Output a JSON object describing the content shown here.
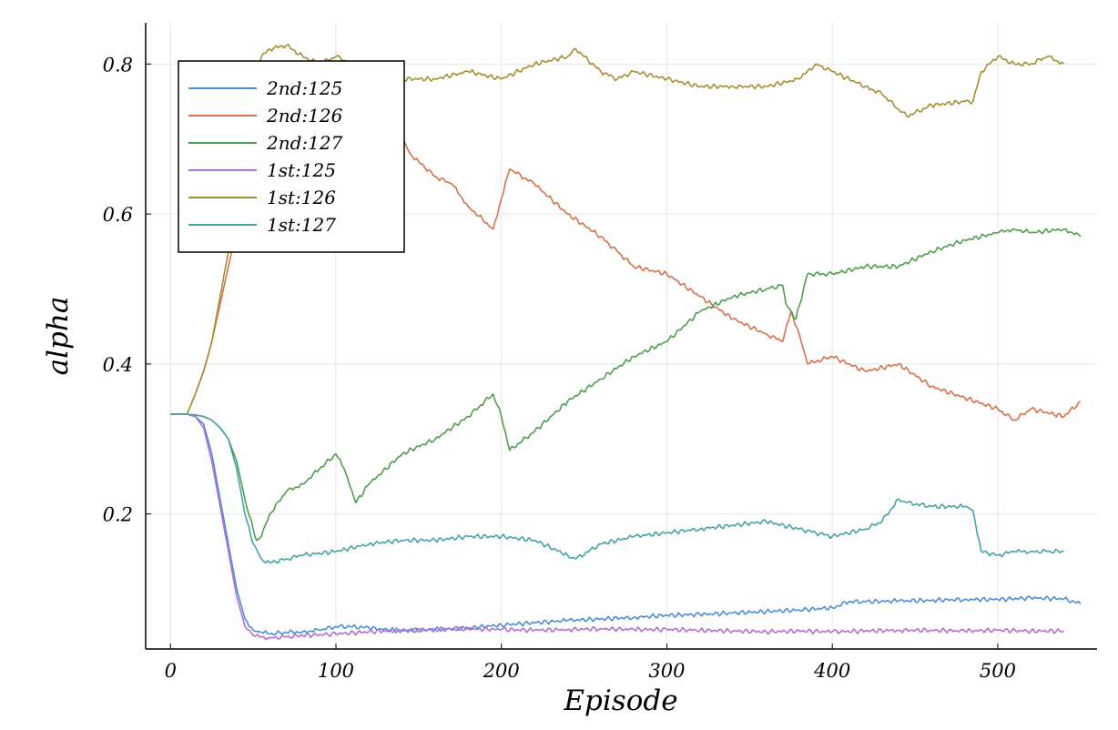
{
  "chart_data": {
    "type": "line",
    "title": "",
    "xlabel": "Episode",
    "ylabel": "alpha",
    "xlim": [
      -15,
      560
    ],
    "ylim": [
      0.02,
      0.855
    ],
    "xticks": [
      0,
      100,
      200,
      300,
      400,
      500
    ],
    "xtick_labels": [
      "0",
      "100",
      "200",
      "300",
      "400",
      "500"
    ],
    "yticks": [
      0.2,
      0.4,
      0.6,
      0.8
    ],
    "ytick_labels": [
      "0.2",
      "0.4",
      "0.6",
      "0.8"
    ],
    "grid": true,
    "legend_position": "top-left",
    "series": [
      {
        "name": "2nd:125",
        "color": "#4a8fd8",
        "x": [
          0,
          10,
          15,
          20,
          25,
          30,
          35,
          40,
          45,
          50,
          55,
          60,
          70,
          80,
          90,
          100,
          110,
          120,
          140,
          160,
          180,
          200,
          220,
          240,
          260,
          280,
          300,
          320,
          340,
          360,
          380,
          400,
          410,
          420,
          440,
          460,
          480,
          500,
          520,
          540,
          550
        ],
        "y": [
          0.333,
          0.333,
          0.33,
          0.32,
          0.28,
          0.22,
          0.16,
          0.1,
          0.06,
          0.045,
          0.042,
          0.04,
          0.042,
          0.043,
          0.045,
          0.05,
          0.05,
          0.048,
          0.044,
          0.046,
          0.048,
          0.052,
          0.055,
          0.058,
          0.06,
          0.062,
          0.065,
          0.066,
          0.068,
          0.07,
          0.072,
          0.075,
          0.083,
          0.083,
          0.084,
          0.085,
          0.086,
          0.086,
          0.088,
          0.087,
          0.08
        ]
      },
      {
        "name": "2nd:126",
        "color": "#d6714b",
        "x": [
          0,
          10,
          15,
          20,
          25,
          30,
          35,
          40,
          45,
          50,
          55,
          60,
          70,
          80,
          100,
          120,
          130,
          140,
          145,
          150,
          160,
          170,
          180,
          195,
          200,
          205,
          220,
          240,
          260,
          270,
          280,
          300,
          320,
          340,
          360,
          370,
          375,
          380,
          385,
          400,
          420,
          440,
          460,
          480,
          500,
          510,
          520,
          540,
          550
        ],
        "y": [
          0.333,
          0.333,
          0.36,
          0.39,
          0.43,
          0.48,
          0.53,
          0.58,
          0.64,
          0.72,
          0.78,
          0.8,
          0.79,
          0.77,
          0.76,
          0.74,
          0.72,
          0.7,
          0.68,
          0.67,
          0.65,
          0.64,
          0.61,
          0.58,
          0.62,
          0.66,
          0.64,
          0.6,
          0.57,
          0.55,
          0.53,
          0.52,
          0.49,
          0.46,
          0.44,
          0.43,
          0.47,
          0.44,
          0.4,
          0.41,
          0.39,
          0.4,
          0.37,
          0.355,
          0.34,
          0.325,
          0.34,
          0.33,
          0.35
        ]
      },
      {
        "name": "2nd:127",
        "color": "#4e9e4e",
        "x": [
          0,
          10,
          15,
          20,
          25,
          30,
          35,
          40,
          45,
          50,
          52,
          55,
          60,
          70,
          80,
          90,
          100,
          105,
          112,
          120,
          140,
          160,
          180,
          195,
          200,
          205,
          220,
          240,
          260,
          280,
          300,
          320,
          340,
          360,
          370,
          372,
          378,
          385,
          400,
          420,
          440,
          460,
          480,
          500,
          510,
          520,
          540,
          550
        ],
        "y": [
          0.333,
          0.333,
          0.332,
          0.33,
          0.325,
          0.315,
          0.3,
          0.27,
          0.22,
          0.18,
          0.165,
          0.17,
          0.2,
          0.23,
          0.24,
          0.26,
          0.28,
          0.26,
          0.215,
          0.24,
          0.28,
          0.3,
          0.33,
          0.36,
          0.33,
          0.285,
          0.31,
          0.35,
          0.38,
          0.41,
          0.43,
          0.47,
          0.49,
          0.5,
          0.505,
          0.48,
          0.46,
          0.52,
          0.52,
          0.53,
          0.53,
          0.55,
          0.565,
          0.575,
          0.58,
          0.575,
          0.58,
          0.57
        ]
      },
      {
        "name": "1st:125",
        "color": "#b26fd1",
        "x": [
          0,
          10,
          15,
          20,
          25,
          30,
          35,
          40,
          45,
          50,
          55,
          60,
          70,
          80,
          100,
          120,
          140,
          160,
          180,
          200,
          220,
          240,
          260,
          280,
          300,
          320,
          340,
          360,
          380,
          400,
          420,
          440,
          460,
          480,
          500,
          520,
          540
        ],
        "y": [
          0.333,
          0.333,
          0.33,
          0.315,
          0.27,
          0.21,
          0.15,
          0.09,
          0.05,
          0.038,
          0.036,
          0.035,
          0.036,
          0.038,
          0.04,
          0.043,
          0.045,
          0.046,
          0.047,
          0.046,
          0.045,
          0.046,
          0.047,
          0.046,
          0.046,
          0.045,
          0.044,
          0.043,
          0.044,
          0.043,
          0.044,
          0.045,
          0.045,
          0.044,
          0.045,
          0.044,
          0.044
        ]
      },
      {
        "name": "1st:126",
        "color": "#a68d32",
        "x": [
          0,
          10,
          15,
          20,
          25,
          30,
          35,
          40,
          45,
          50,
          55,
          60,
          70,
          80,
          90,
          100,
          110,
          120,
          140,
          160,
          180,
          200,
          220,
          240,
          245,
          260,
          270,
          280,
          300,
          320,
          340,
          360,
          380,
          390,
          400,
          420,
          430,
          440,
          445,
          460,
          480,
          485,
          490,
          500,
          510,
          520,
          530,
          540
        ],
        "y": [
          0.333,
          0.333,
          0.36,
          0.39,
          0.43,
          0.49,
          0.55,
          0.61,
          0.7,
          0.78,
          0.81,
          0.82,
          0.825,
          0.81,
          0.8,
          0.81,
          0.8,
          0.79,
          0.78,
          0.78,
          0.79,
          0.78,
          0.8,
          0.81,
          0.82,
          0.79,
          0.78,
          0.79,
          0.78,
          0.77,
          0.77,
          0.77,
          0.78,
          0.8,
          0.79,
          0.77,
          0.76,
          0.74,
          0.73,
          0.745,
          0.75,
          0.75,
          0.79,
          0.81,
          0.8,
          0.8,
          0.81,
          0.8
        ]
      },
      {
        "name": "1st:127",
        "color": "#45a3a8",
        "x": [
          0,
          10,
          15,
          20,
          25,
          30,
          35,
          40,
          45,
          50,
          55,
          60,
          70,
          80,
          100,
          120,
          140,
          160,
          180,
          200,
          220,
          240,
          245,
          260,
          280,
          300,
          320,
          340,
          360,
          380,
          390,
          400,
          420,
          430,
          440,
          445,
          460,
          480,
          485,
          490,
          500,
          510,
          520,
          530,
          540
        ],
        "y": [
          0.333,
          0.333,
          0.332,
          0.33,
          0.325,
          0.315,
          0.3,
          0.26,
          0.2,
          0.16,
          0.14,
          0.135,
          0.14,
          0.145,
          0.15,
          0.16,
          0.165,
          0.165,
          0.17,
          0.17,
          0.165,
          0.145,
          0.14,
          0.16,
          0.17,
          0.175,
          0.18,
          0.185,
          0.19,
          0.18,
          0.175,
          0.17,
          0.18,
          0.19,
          0.22,
          0.215,
          0.21,
          0.21,
          0.205,
          0.15,
          0.145,
          0.15,
          0.15,
          0.15,
          0.15
        ]
      }
    ]
  }
}
